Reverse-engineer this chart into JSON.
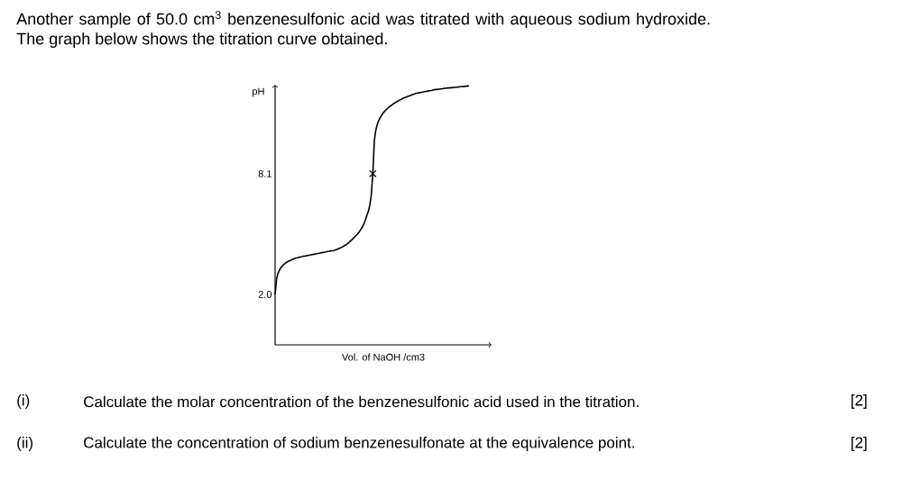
{
  "chart_data": {
    "type": "line",
    "title": "Another sample of 50.0 cm$^{3}$ benzenesulfonic acid was titrated with aqueous sodium hydroxide. The graph below shows the titration curve obtained.",
    "xlabel": "Vol. of NaOH /cm3",
    "ylabel": "pH",
    "categories": [
      null,
      null,
      null,
      null,
      null,
      null,
      null,
      null,
      null,
      null,
      null,
      null,
      null,
      null,
      null,
      null,
      null,
      null,
      null,
      null,
      null,
      null,
      null,
      null,
      null,
      null,
      null,
      null,
      null,
      null,
      null,
      null,
      null,
      null,
      null,
      null,
      null,
      null,
      null,
      null,
      null,
      null,
      null,
      null,
      null,
      null,
      null,
      null,
      null,
      null,
      null,
      null,
      null,
      null,
      null,
      null,
      null,
      null,
      null,
      null,
      null,
      null,
      null,
      null,
      null,
      null,
      null,
      null,
      null,
      null,
      null,
      null,
      null,
      null,
      null,
      null,
      null,
      null,
      null,
      null,
      null,
      null,
      null,
      null,
      null,
      null,
      null,
      null,
      null,
      null,
      null,
      null,
      null,
      null,
      null,
      null,
      null,
      null,
      null,
      null,
      null,
      null,
      null,
      null,
      null,
      null,
      null,
      null,
      null,
      null,
      null,
      null,
      null,
      null,
      null,
      null,
      null,
      null,
      null,
      null,
      null,
      null,
      null,
      null,
      null,
      null,
      null,
      null,
      null,
      null
    ],
    "series": [
      {
        "color": "#000000",
        "marker": "none",
        "values": [
          2.0,
          2.79,
          3.09,
          3.24,
          3.37,
          3.46,
          3.53,
          3.59,
          3.64,
          3.68,
          3.71,
          3.75,
          3.78,
          3.81,
          3.84,
          3.85,
          3.88,
          3.9,
          3.91,
          3.93,
          3.94,
          3.96,
          3.97,
          3.99,
          4.0,
          4.02,
          4.03,
          4.05,
          4.06,
          4.08,
          4.09,
          4.11,
          4.12,
          4.14,
          4.15,
          4.17,
          4.18,
          4.2,
          4.21,
          4.22,
          4.24,
          4.27,
          4.3,
          4.34,
          4.37,
          4.41,
          4.46,
          4.5,
          4.56,
          4.62,
          4.69,
          4.76,
          4.84,
          4.91,
          4.99,
          5.06,
          5.17,
          5.28,
          5.4,
          5.55,
          5.75,
          5.98,
          6.2,
          6.51,
          7.04,
          8.1,
          9.77,
          10.3,
          10.6,
          10.8,
          10.95,
          11.07,
          11.18,
          11.27,
          11.35,
          11.42,
          11.48,
          11.54,
          11.6,
          11.65,
          11.7,
          11.74,
          11.79,
          11.83,
          11.86,
          11.91,
          11.94,
          11.97,
          12.0,
          12.03,
          12.06,
          12.09,
          12.12,
          12.14,
          12.17,
          12.18,
          12.2,
          12.21,
          12.23,
          12.24,
          12.26,
          12.27,
          12.29,
          12.3,
          12.31,
          12.33,
          12.35,
          12.36,
          12.36,
          12.38,
          12.39,
          12.39,
          12.41,
          12.42,
          12.42,
          12.44,
          12.44,
          12.45,
          12.45,
          12.47,
          12.47,
          12.48,
          12.48,
          12.5,
          12.5,
          12.51,
          12.51,
          12.53,
          12.53,
          12.55
        ]
      },
      {
        "type": "scatter",
        "color": "#000000",
        "marker": "cross",
        "values": [
          null,
          null,
          null,
          null,
          null,
          null,
          null,
          null,
          null,
          null,
          null,
          null,
          null,
          null,
          null,
          null,
          null,
          null,
          null,
          null,
          null,
          null,
          null,
          null,
          null,
          null,
          null,
          null,
          null,
          null,
          null,
          null,
          null,
          null,
          null,
          null,
          null,
          null,
          null,
          null,
          null,
          null,
          null,
          null,
          null,
          null,
          null,
          null,
          null,
          null,
          null,
          null,
          null,
          null,
          null,
          null,
          null,
          null,
          null,
          null,
          null,
          null,
          null,
          null,
          null,
          8.1,
          null,
          null,
          null,
          null,
          null,
          null,
          null,
          null,
          null,
          null,
          null,
          null,
          null,
          null,
          null,
          null,
          null,
          null,
          null,
          null,
          null,
          null,
          null,
          null,
          null,
          null,
          null,
          null,
          null,
          null,
          null,
          null,
          null,
          null,
          null,
          null,
          null,
          null,
          null,
          null,
          null,
          null,
          null,
          null,
          null,
          null,
          null,
          null,
          null,
          null,
          null,
          null,
          null,
          null,
          null,
          null,
          null,
          null,
          null,
          null,
          null,
          null,
          null,
          null
        ]
      }
    ],
    "ylim": [
      -0.55,
      12.6
    ],
    "yticks": [
      {
        "value": 2.0,
        "label": "2.0"
      },
      8.1
    ],
    "annotations": [
      "(i)",
      "Calculate the molar concentration of the benzenesulfonic acid used in the titration.",
      "[2]",
      "(ii)",
      "Calculate the concentration of sodium benzenesulfonate at the equivalence point.",
      "[2]"
    ]
  }
}
